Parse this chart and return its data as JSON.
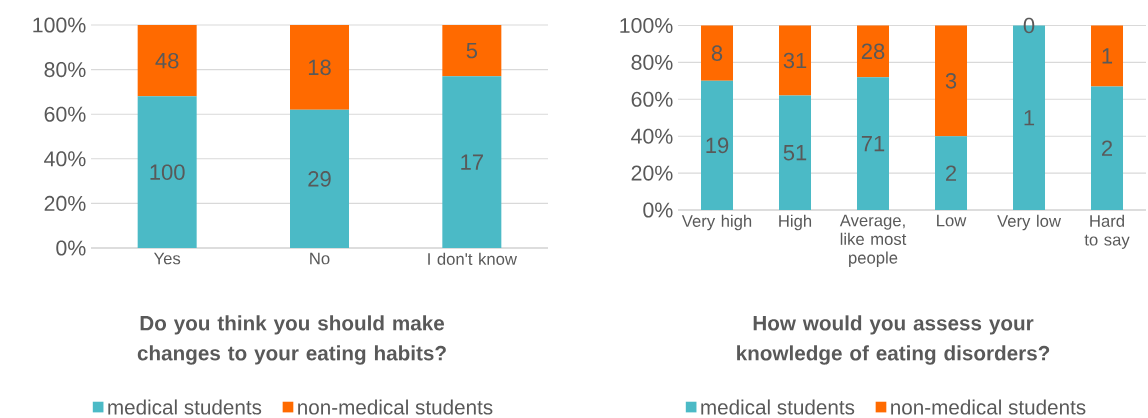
{
  "chart_data": [
    {
      "type": "bar",
      "stacked": true,
      "title": "Do you think you should make changes to your eating habits?",
      "categories": [
        "Yes",
        "No",
        "I don't know"
      ],
      "series": [
        {
          "name": "medical students",
          "color": "#4bbac6",
          "values": [
            68,
            62,
            77
          ]
        },
        {
          "name": "non-medical students",
          "color": "#ff6a00",
          "values": [
            32,
            38,
            23
          ]
        }
      ],
      "annotations": [
        "100",
        "29",
        "17",
        "48",
        "18",
        "5"
      ],
      "ylim": [
        0,
        100
      ],
      "yticks": [
        {
          "value": 0,
          "label": "0%"
        },
        {
          "value": 20,
          "label": "20%"
        },
        {
          "value": 40,
          "label": "40%"
        },
        {
          "value": 60,
          "label": "60%"
        },
        {
          "value": 80,
          "label": "80%"
        },
        {
          "value": 100,
          "label": "100%"
        }
      ],
      "grid": "y",
      "legend": "bottom"
    },
    {
      "type": "bar",
      "stacked": true,
      "title": "How would you assess your knowledge of eating disorders?",
      "categories": [
        "Very high",
        "High",
        "Average, like most people",
        "Low",
        "Very low",
        "Hard to say"
      ],
      "series": [
        {
          "name": "medical students",
          "color": "#4bbac6",
          "values": [
            70,
            62,
            72,
            40,
            100,
            67
          ]
        },
        {
          "name": "non-medical students",
          "color": "#ff6a00",
          "values": [
            30,
            38,
            28,
            60,
            0,
            33
          ]
        }
      ],
      "annotations": [
        "19",
        "51",
        "71",
        "2",
        "1",
        "2",
        "8",
        "31",
        "28",
        "3",
        "0",
        "1"
      ],
      "ylim": [
        0,
        100
      ],
      "yticks": [
        {
          "value": 0,
          "label": "0%"
        },
        {
          "value": 20,
          "label": "20%"
        },
        {
          "value": 40,
          "label": "40%"
        },
        {
          "value": 60,
          "label": "60%"
        },
        {
          "value": 80,
          "label": "80%"
        },
        {
          "value": 100,
          "label": "100%"
        }
      ],
      "grid": "y",
      "legend": "bottom"
    }
  ]
}
